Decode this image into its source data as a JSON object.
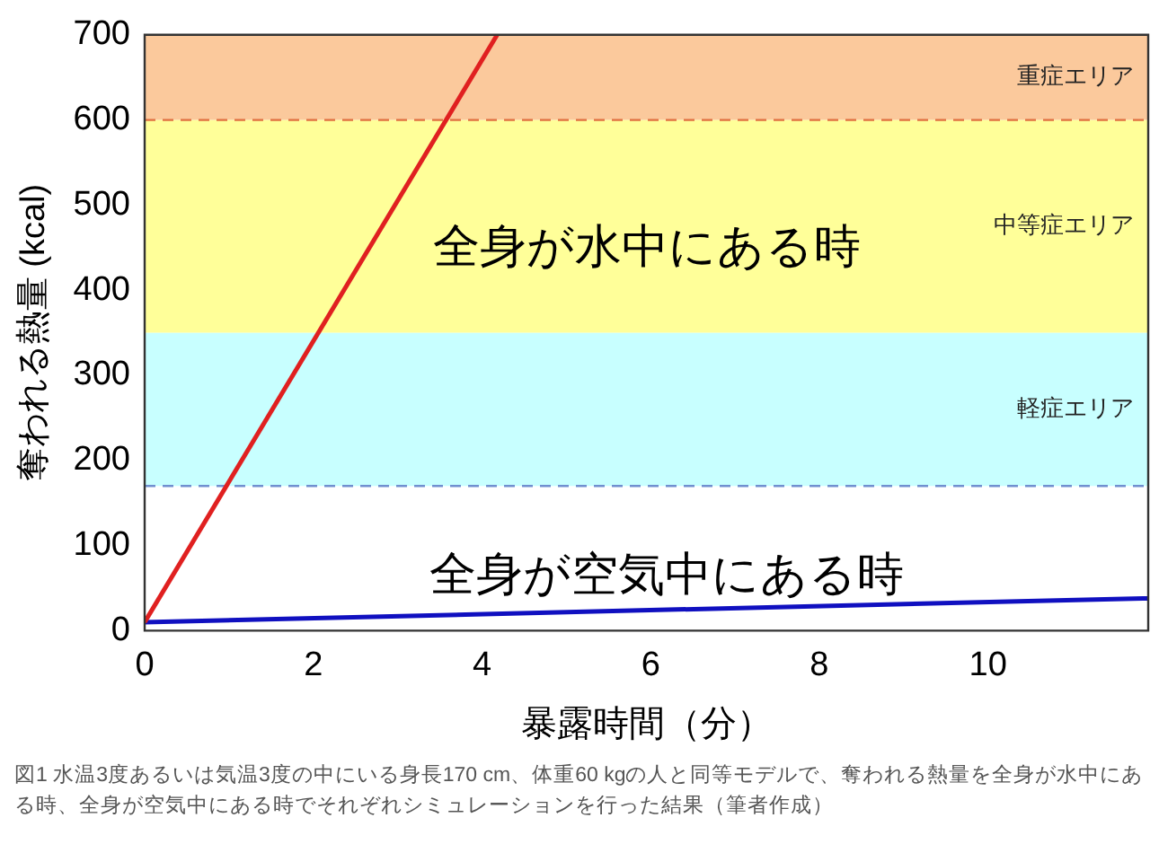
{
  "chart_data": {
    "type": "line",
    "xlabel": "暴露時間（分）",
    "ylabel": "奪われる熱量 (kcal)",
    "xlim": [
      0,
      11.9
    ],
    "xticks": [
      0,
      2,
      4,
      6,
      8,
      10
    ],
    "ylim": [
      0,
      700
    ],
    "yticks": [
      0,
      100,
      200,
      300,
      400,
      500,
      600,
      700
    ],
    "grid": false,
    "legend": false,
    "marker": "none",
    "line_style": "solid",
    "series": [
      {
        "name": "全身が水中にある時",
        "color": "#e02020",
        "x": [
          0,
          4.18
        ],
        "values": [
          10,
          700
        ]
      },
      {
        "name": "全身が空気中にある時",
        "color": "#1010c0",
        "x": [
          0,
          11.9
        ],
        "values": [
          10,
          38
        ]
      }
    ],
    "bands": [
      {
        "axis": "y",
        "from": 170,
        "to": 350,
        "label": "軽症エリア",
        "color": "#c8ffff"
      },
      {
        "axis": "y",
        "from": 350,
        "to": 600,
        "label": "中等症エリア",
        "color": "#ffff99"
      },
      {
        "axis": "y",
        "from": 600,
        "to": 700,
        "label": "重症エリア",
        "color": "#fbc99c"
      }
    ],
    "ref_lines": [
      {
        "axis": "y",
        "value": 170,
        "color": "#7090d0",
        "line_style": "dashed"
      },
      {
        "axis": "y",
        "value": 600,
        "color": "#e07040",
        "line_style": "dashed"
      }
    ],
    "annotations": [
      "図1 水温3度あるいは気温3度の中にいる身長170 cm、体重60 kgの人と同等モデルで、奪われる熱量を全身が水中にある時、全身が空気中にある時でそれぞれシミュレーションを行った結果（筆者作成）"
    ]
  }
}
